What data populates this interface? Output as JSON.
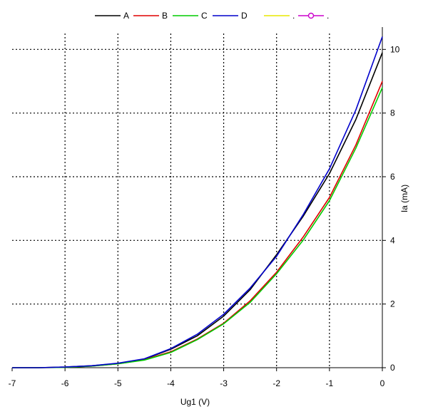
{
  "chart_data": {
    "type": "line",
    "xlabel": "Ug1 (V)",
    "ylabel": "Ia (mA)",
    "xlim": [
      -7,
      0
    ],
    "ylim": [
      0,
      10.5
    ],
    "x_ticks": [
      -7,
      -6,
      -5,
      -4,
      -3,
      -2,
      -1,
      0
    ],
    "y_ticks": [
      0,
      2,
      4,
      6,
      8,
      10
    ],
    "x_tick_labels": [
      "-7",
      "-6",
      "-5",
      "-4",
      "-3",
      "-2",
      "-1",
      "0"
    ],
    "y_tick_labels": [
      "0",
      "2",
      "4",
      "6",
      "8",
      "10"
    ],
    "grid": true,
    "legend_position": "top",
    "series": [
      {
        "name": "A",
        "color": "#000000",
        "x": [
          -7,
          -6.5,
          -6,
          -5.5,
          -5,
          -4.5,
          -4,
          -3.5,
          -3,
          -2.5,
          -2,
          -1.5,
          -1,
          -0.5,
          0
        ],
        "y": [
          0.0,
          0.0,
          0.02,
          0.06,
          0.13,
          0.27,
          0.58,
          1.0,
          1.62,
          2.45,
          3.55,
          4.75,
          6.1,
          7.8,
          9.9
        ]
      },
      {
        "name": "B",
        "color": "#e00000",
        "x": [
          -7,
          -6.5,
          -6,
          -5.5,
          -5,
          -4.5,
          -4,
          -3.5,
          -3,
          -2.5,
          -2,
          -1.5,
          -1,
          -0.5,
          0
        ],
        "y": [
          0.0,
          0.0,
          0.01,
          0.05,
          0.12,
          0.25,
          0.5,
          0.9,
          1.4,
          2.1,
          3.0,
          4.1,
          5.35,
          7.0,
          9.0
        ]
      },
      {
        "name": "C",
        "color": "#00cc00",
        "x": [
          -7,
          -6.5,
          -6,
          -5.5,
          -5,
          -4.5,
          -4,
          -3.5,
          -3,
          -2.5,
          -2,
          -1.5,
          -1,
          -0.5,
          0
        ],
        "y": [
          0.0,
          0.0,
          0.01,
          0.05,
          0.12,
          0.24,
          0.48,
          0.88,
          1.38,
          2.05,
          2.95,
          4.0,
          5.25,
          6.9,
          8.8
        ]
      },
      {
        "name": "D",
        "color": "#0000cc",
        "x": [
          -7,
          -6.5,
          -6,
          -5.5,
          -5,
          -4.5,
          -4,
          -3.5,
          -3,
          -2.5,
          -2,
          -1.5,
          -1,
          -0.5,
          0
        ],
        "y": [
          0.0,
          0.0,
          0.02,
          0.06,
          0.14,
          0.28,
          0.6,
          1.05,
          1.68,
          2.5,
          3.5,
          4.8,
          6.25,
          8.1,
          10.4
        ]
      }
    ],
    "legend_entries": [
      {
        "label": "A",
        "color": "#000000",
        "marker": "none"
      },
      {
        "label": "B",
        "color": "#e00000",
        "marker": "none"
      },
      {
        "label": "C",
        "color": "#00cc00",
        "marker": "none"
      },
      {
        "label": "D",
        "color": "#0000cc",
        "marker": "none"
      },
      {
        "label": ".",
        "color": "#e8e800",
        "marker": "none"
      },
      {
        "label": ".",
        "color": "#cc00cc",
        "marker": "circle"
      }
    ]
  }
}
